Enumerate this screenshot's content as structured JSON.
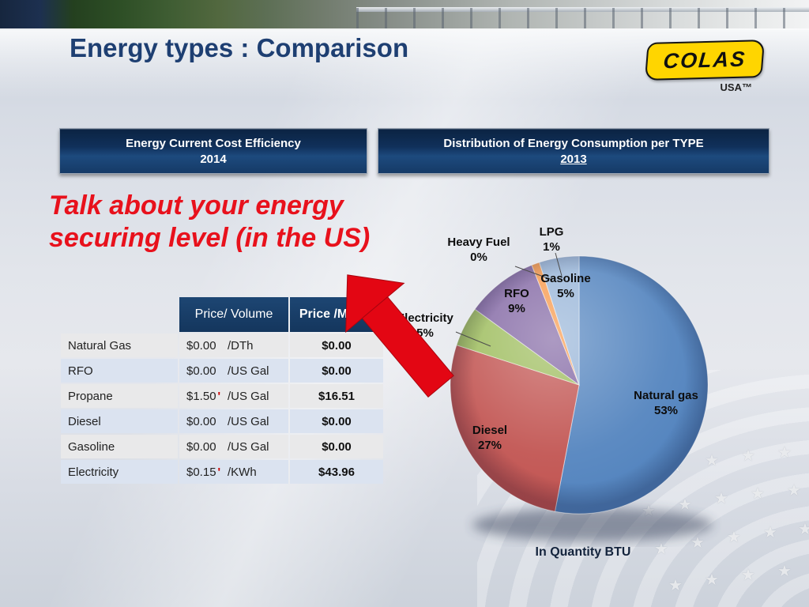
{
  "slide": {
    "title": "Energy types : Comparison",
    "logo": {
      "brand": "COLAS",
      "region": "USA™"
    },
    "banners": [
      {
        "title": "Energy Current Cost Efficiency",
        "year": "2014"
      },
      {
        "title": "Distribution of Energy Consumption per TYPE",
        "year": "2013"
      }
    ],
    "headline": {
      "line1": "Talk about your energy",
      "line2": "securing level (in the US)"
    },
    "caption": "In Quantity BTU"
  },
  "table": {
    "headers": {
      "col1": "",
      "col2": "Price/ Volume",
      "col3": "Price /MBTU"
    },
    "rows": [
      {
        "name": "Natural Gas",
        "price": "$0.00",
        "unit": "/DTh",
        "mbtu": "$0.00"
      },
      {
        "name": "RFO",
        "price": "$0.00",
        "unit": "/US Gal",
        "mbtu": "$0.00"
      },
      {
        "name": "Propane",
        "price": "$1.50",
        "unit": "/US Gal",
        "mbtu": "$16.51"
      },
      {
        "name": "Diesel",
        "price": "$0.00",
        "unit": "/US Gal",
        "mbtu": "$0.00"
      },
      {
        "name": "Gasoline",
        "price": "$0.00",
        "unit": "/US Gal",
        "mbtu": "$0.00"
      },
      {
        "name": "Electricity",
        "price": "$0.15",
        "unit": "/KWh",
        "mbtu": "$43.96"
      }
    ]
  },
  "chart_data": {
    "type": "pie",
    "title": "Distribution of Energy Consumption per TYPE",
    "year": "2013",
    "caption": "In Quantity BTU",
    "start_angle_deg": -90,
    "direction": "clockwise",
    "slices": [
      {
        "label": "Natural gas",
        "pct": 53,
        "pct_label": "53%",
        "color": "#4F81BD"
      },
      {
        "label": "Diesel",
        "pct": 27,
        "pct_label": "27%",
        "color": "#C0504D"
      },
      {
        "label": "Electricity",
        "pct": 5,
        "pct_label": "5%",
        "color": "#9BBB59"
      },
      {
        "label": "RFO",
        "pct": 9,
        "pct_label": "9%",
        "color": "#8064A2"
      },
      {
        "label": "Heavy Fuel",
        "pct": 0,
        "pct_label": "0%",
        "color": "#4BACC6"
      },
      {
        "label": "LPG",
        "pct": 1,
        "pct_label": "1%",
        "color": "#F79646"
      },
      {
        "label": "Gasoline",
        "pct": 5,
        "pct_label": "5%",
        "color": "#95B3D7"
      }
    ]
  }
}
